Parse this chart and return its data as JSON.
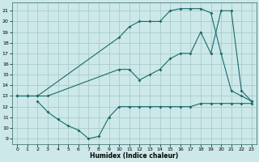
{
  "title": "",
  "xlabel": "Humidex (Indice chaleur)",
  "bg_color": "#cce8e8",
  "grid_color": "#aacccc",
  "line_color": "#1a6b6b",
  "xlim": [
    -0.5,
    23.5
  ],
  "ylim": [
    8.5,
    21.8
  ],
  "xticks": [
    0,
    1,
    2,
    3,
    4,
    5,
    6,
    7,
    8,
    9,
    10,
    11,
    12,
    13,
    14,
    15,
    16,
    17,
    18,
    19,
    20,
    21,
    22,
    23
  ],
  "yticks": [
    9,
    10,
    11,
    12,
    13,
    14,
    15,
    16,
    17,
    18,
    19,
    20,
    21
  ],
  "line1_x": [
    0,
    1,
    2,
    10,
    11,
    12,
    13,
    14,
    15,
    16,
    17,
    18,
    19,
    20,
    21,
    22,
    23
  ],
  "line1_y": [
    13,
    13,
    13,
    18.5,
    19.5,
    20.0,
    20.0,
    20.0,
    21.0,
    21.2,
    21.2,
    21.2,
    20.8,
    17.0,
    13.5,
    13.0,
    12.5
  ],
  "line2_x": [
    0,
    1,
    2,
    3,
    10,
    11,
    12,
    13,
    14,
    15,
    16,
    17,
    18,
    19,
    20,
    21,
    22,
    23
  ],
  "line2_y": [
    13,
    13,
    13,
    13,
    15.5,
    15.5,
    14.5,
    15.0,
    15.5,
    16.5,
    17.0,
    17.0,
    19.0,
    17.0,
    21.0,
    21.0,
    13.5,
    12.5
  ],
  "line3_x": [
    2,
    3,
    4,
    5,
    6,
    7,
    8,
    9,
    10,
    11,
    12,
    13,
    14,
    15,
    16,
    17,
    18,
    19,
    20,
    21,
    22,
    23
  ],
  "line3_y": [
    12.5,
    11.5,
    10.8,
    10.2,
    9.8,
    9.0,
    9.2,
    11.0,
    12.0,
    12.0,
    12.0,
    12.0,
    12.0,
    12.0,
    12.0,
    12.0,
    12.3,
    12.3,
    12.3,
    12.3,
    12.3,
    12.3
  ]
}
